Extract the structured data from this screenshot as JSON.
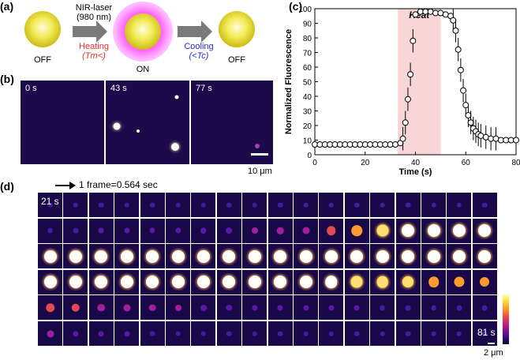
{
  "panel_a": {
    "label": "(a)",
    "laser_line1": "NIR-laser",
    "laser_line2": "(980 nm)",
    "heating_word": "Heating",
    "heating_cond": "(Tm<)",
    "cooling_word": "Cooling",
    "cooling_cond": "(<Tc)",
    "state_left": "OFF",
    "state_mid": "ON",
    "state_right": "OFF",
    "colors": {
      "heating": "#e8302a",
      "cooling": "#2a2ad8"
    }
  },
  "panel_b": {
    "label": "(b)",
    "frames": [
      "0 s",
      "43 s",
      "77 s"
    ],
    "scalebar": "10 μm"
  },
  "panel_c": {
    "label": "(c)",
    "heat_label": "Heat",
    "chart_data": {
      "type": "scatter",
      "xlabel": "Time (s)",
      "ylabel": "Normalized Fluorescence",
      "xlim": [
        0,
        80
      ],
      "ylim": [
        0,
        100
      ],
      "xticks": [
        "0",
        "20",
        "40",
        "60",
        "80"
      ],
      "yticks": [
        "0",
        "10",
        "20",
        "30",
        "40",
        "50",
        "60",
        "70",
        "80",
        "90",
        "100"
      ],
      "heat_region": [
        33,
        50
      ],
      "series": [
        {
          "x": [
            0,
            2,
            4,
            6,
            8,
            10,
            12,
            14,
            16,
            18,
            20,
            22,
            24,
            26,
            28,
            30,
            32,
            34,
            35,
            36,
            37,
            38,
            39,
            40,
            42,
            44,
            46,
            48,
            50,
            52,
            54,
            55,
            56,
            57,
            58,
            59,
            60,
            61,
            62,
            63,
            64,
            65,
            66,
            68,
            70,
            72,
            74,
            76,
            78,
            80
          ],
          "y": [
            7,
            7,
            7,
            7,
            7,
            7,
            7,
            7,
            7,
            7,
            7,
            7,
            7,
            7,
            7,
            7,
            7,
            8,
            11,
            22,
            38,
            55,
            78,
            96,
            98,
            98,
            98,
            97,
            97,
            96,
            95,
            92,
            85,
            72,
            58,
            44,
            34,
            27,
            22,
            18,
            16,
            14,
            13,
            12,
            11,
            11,
            10,
            10,
            10,
            10
          ]
        }
      ]
    }
  },
  "panel_d": {
    "label": "(d)",
    "frame_note": "1 frame=0.564 sec",
    "start_time": "21 s",
    "end_time": "81 s",
    "scalebar": "2 μm",
    "row_intensity": [
      [
        0.05,
        0.05,
        0.05,
        0.05,
        0.05,
        0.05,
        0.05,
        0.05,
        0.05,
        0.05,
        0.05,
        0.05,
        0.05,
        0.05,
        0.05,
        0.05,
        0.05,
        0.05
      ],
      [
        0.08,
        0.08,
        0.1,
        0.1,
        0.12,
        0.12,
        0.15,
        0.18,
        0.2,
        0.25,
        0.3,
        0.55,
        0.75,
        0.9,
        1,
        1,
        1,
        1
      ],
      [
        1,
        1,
        1,
        1,
        1,
        1,
        1,
        1,
        1,
        1,
        1,
        1,
        1,
        1,
        1,
        1,
        1,
        1
      ],
      [
        1,
        1,
        1,
        1,
        1,
        1,
        1,
        1,
        1,
        1,
        1,
        0.95,
        0.9,
        0.85,
        0.8,
        0.75,
        0.7,
        0.6
      ],
      [
        0.55,
        0.45,
        0.35,
        0.3,
        0.25,
        0.2,
        0.18,
        0.15,
        0.12,
        0.12,
        0.1,
        0.1,
        0.1,
        0.08,
        0.08,
        0.08,
        0.08,
        0.08
      ],
      [
        0.3,
        0.12,
        0.1,
        0.1,
        0.08,
        0.08,
        0.06,
        0.06,
        0.06,
        0.06,
        0.06,
        0.05,
        0.05,
        0.05,
        0.05,
        0.05,
        0.05,
        0.05
      ]
    ]
  }
}
